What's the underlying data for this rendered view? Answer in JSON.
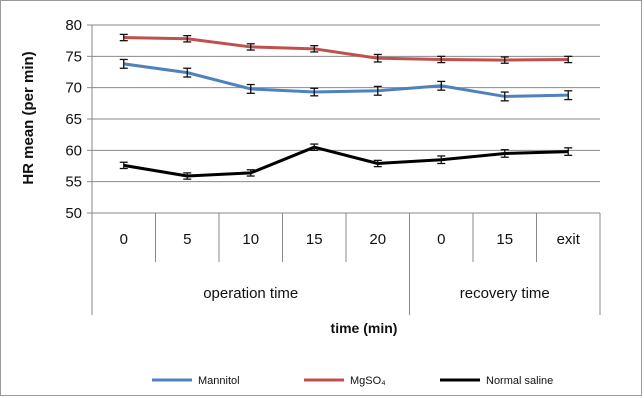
{
  "chart_data": {
    "type": "line",
    "ylabel": "HR mean (per min)",
    "xlabel": "time (min)",
    "ylim": [
      50,
      80
    ],
    "yticks": [
      50,
      55,
      60,
      65,
      70,
      75,
      80
    ],
    "grid": true,
    "legend": "bottom",
    "categories": [
      "0",
      "5",
      "10",
      "15",
      "20",
      "0",
      "15",
      "exit"
    ],
    "groups": [
      {
        "label": "operation time",
        "span": [
          0,
          4
        ]
      },
      {
        "label": "recovery time",
        "span": [
          5,
          7
        ]
      }
    ],
    "series": [
      {
        "name": "Mannitol",
        "color": "#4f81bd",
        "values": [
          73.8,
          72.4,
          69.8,
          69.3,
          69.5,
          70.3,
          68.6,
          68.8
        ],
        "errors": [
          0.7,
          0.7,
          0.7,
          0.6,
          0.7,
          0.7,
          0.7,
          0.7
        ]
      },
      {
        "name": "MgSO₄",
        "color": "#c0504d",
        "values": [
          78.0,
          77.8,
          76.5,
          76.2,
          74.7,
          74.5,
          74.4,
          74.5
        ],
        "errors": [
          0.5,
          0.5,
          0.5,
          0.5,
          0.6,
          0.5,
          0.5,
          0.5
        ]
      },
      {
        "name": "Normal saline",
        "color": "#000000",
        "values": [
          57.6,
          55.9,
          56.4,
          60.5,
          57.9,
          58.5,
          59.5,
          59.8
        ],
        "errors": [
          0.5,
          0.5,
          0.5,
          0.5,
          0.5,
          0.6,
          0.6,
          0.6
        ]
      }
    ]
  }
}
